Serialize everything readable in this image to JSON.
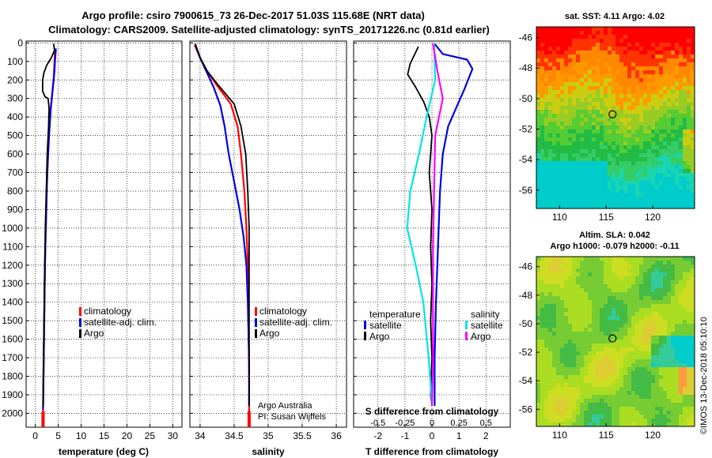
{
  "header": {
    "title_line1": "Argo profile: csiro 7900615_73 26-Dec-2017 51.03S 115.68E (NRT data)",
    "title_line2": "Climatology: CARS2009. Satellite-adjusted climatology: synTS_20171226.nc (0.81d earlier)"
  },
  "colors": {
    "climatology": "#ff0000",
    "satellite_adj": "#0000dd",
    "argo": "#000000",
    "satellite_salinity": "#00e5e5",
    "argo_salinity": "#ff00ff"
  },
  "chart_data": [
    {
      "type": "line",
      "id": "temperature",
      "xlabel": "temperature (deg C)",
      "ylabel": "",
      "xlim": [
        -2,
        32
      ],
      "ylim": [
        2075,
        -10
      ],
      "xticks": [
        "0",
        "5",
        "10",
        "15",
        "20",
        "25",
        "30"
      ],
      "xtick_values": [
        0,
        5,
        10,
        15,
        20,
        25,
        30
      ],
      "yticks": [
        "0",
        "100",
        "200",
        "300",
        "400",
        "500",
        "600",
        "700",
        "800",
        "900",
        "1000",
        "1100",
        "1200",
        "1300",
        "1400",
        "1500",
        "1600",
        "1700",
        "1800",
        "1900",
        "2000"
      ],
      "legend": [
        "climatology",
        "satellite-adj. clim.",
        "Argo"
      ],
      "series": [
        {
          "name": "climatology",
          "color": "#ff0000",
          "points": [
            [
              4.3,
              30
            ],
            [
              4.2,
              100
            ],
            [
              4.0,
              200
            ],
            [
              3.6,
              300
            ],
            [
              3.2,
              400
            ],
            [
              2.8,
              600
            ],
            [
              2.5,
              800
            ],
            [
              2.3,
              1000
            ],
            [
              2.1,
              1200
            ],
            [
              2.0,
              1400
            ],
            [
              1.9,
              1600
            ],
            [
              1.8,
              1800
            ],
            [
              1.7,
              2000
            ],
            [
              1.7,
              2050
            ]
          ]
        },
        {
          "name": "satellite-adj. clim.",
          "color": "#0000dd",
          "points": [
            [
              4.5,
              30
            ],
            [
              4.3,
              100
            ],
            [
              4.2,
              150
            ],
            [
              3.8,
              250
            ],
            [
              3.4,
              350
            ],
            [
              3.0,
              500
            ],
            [
              2.6,
              700
            ],
            [
              2.4,
              900
            ],
            [
              2.2,
              1100
            ],
            [
              2.05,
              1300
            ],
            [
              1.95,
              1500
            ],
            [
              1.85,
              1700
            ],
            [
              1.75,
              1900
            ],
            [
              1.7,
              1980
            ]
          ]
        },
        {
          "name": "Argo",
          "color": "#000000",
          "points": [
            [
              4.0,
              5
            ],
            [
              4.2,
              40
            ],
            [
              3.5,
              80
            ],
            [
              2.5,
              120
            ],
            [
              1.9,
              160
            ],
            [
              1.6,
              200
            ],
            [
              1.6,
              260
            ],
            [
              2.1,
              290
            ],
            [
              2.8,
              300
            ],
            [
              3.0,
              350
            ],
            [
              2.9,
              450
            ],
            [
              2.6,
              600
            ],
            [
              2.4,
              800
            ],
            [
              2.2,
              1000
            ],
            [
              2.05,
              1200
            ],
            [
              1.95,
              1400
            ],
            [
              1.85,
              1600
            ],
            [
              1.75,
              1800
            ],
            [
              1.7,
              1960
            ]
          ]
        }
      ]
    },
    {
      "type": "line",
      "id": "salinity",
      "xlabel": "salinity",
      "ylabel": "",
      "xlim": [
        33.85,
        36.15
      ],
      "ylim": [
        2075,
        -10
      ],
      "xticks": [
        "34",
        "34.5",
        "35",
        "35.5",
        "36"
      ],
      "xtick_values": [
        34,
        34.5,
        35,
        35.5,
        36
      ],
      "legend": [
        "climatology",
        "satellite-adj. clim.",
        "Argo"
      ],
      "annotation": [
        "Argo Australia",
        "PI: Susan Wijffels"
      ],
      "series": [
        {
          "name": "climatology",
          "color": "#ff0000",
          "points": [
            [
              33.92,
              10
            ],
            [
              34.0,
              80
            ],
            [
              34.1,
              150
            ],
            [
              34.25,
              230
            ],
            [
              34.45,
              330
            ],
            [
              34.55,
              450
            ],
            [
              34.6,
              600
            ],
            [
              34.65,
              800
            ],
            [
              34.68,
              1000
            ],
            [
              34.7,
              1200
            ],
            [
              34.71,
              1500
            ],
            [
              34.72,
              1800
            ],
            [
              34.72,
              2050
            ]
          ]
        },
        {
          "name": "satellite-adj. clim.",
          "color": "#0000dd",
          "points": [
            [
              33.93,
              10
            ],
            [
              34.0,
              80
            ],
            [
              34.1,
              160
            ],
            [
              34.2,
              240
            ],
            [
              34.3,
              340
            ],
            [
              34.36,
              450
            ],
            [
              34.42,
              600
            ],
            [
              34.5,
              750
            ],
            [
              34.58,
              900
            ],
            [
              34.64,
              1050
            ],
            [
              34.68,
              1200
            ],
            [
              34.7,
              1400
            ],
            [
              34.72,
              1700
            ],
            [
              34.72,
              1960
            ]
          ]
        },
        {
          "name": "Argo",
          "color": "#000000",
          "points": [
            [
              33.93,
              5
            ],
            [
              34.0,
              80
            ],
            [
              34.1,
              150
            ],
            [
              34.25,
              220
            ],
            [
              34.5,
              330
            ],
            [
              34.6,
              450
            ],
            [
              34.67,
              600
            ],
            [
              34.7,
              800
            ],
            [
              34.72,
              1000
            ],
            [
              34.72,
              1200
            ],
            [
              34.72,
              1500
            ],
            [
              34.72,
              1800
            ],
            [
              34.72,
              1960
            ]
          ]
        }
      ]
    },
    {
      "type": "line",
      "id": "difference",
      "xlabel": "T difference from climatology",
      "xlabel_top": "S difference from climatology",
      "xlim": [
        -2.9,
        2.9
      ],
      "ylim": [
        2075,
        -10
      ],
      "xticks": [
        "-2",
        "-1",
        "0",
        "1",
        "2"
      ],
      "xtick_values": [
        -2,
        -1,
        0,
        1,
        2
      ],
      "xticks_s": [
        "-0.5",
        "-0.25",
        "0",
        "0.25",
        "0.5"
      ],
      "xtick_s_values": [
        -0.5,
        -0.25,
        0,
        0.25,
        0.5
      ],
      "legend_temperature": {
        "title": "temperature",
        "items": [
          "satellite",
          "Argo"
        ]
      },
      "legend_salinity": {
        "title": "salinity",
        "items": [
          "satellite",
          "Argo"
        ]
      },
      "series": [
        {
          "name": "temperature satellite",
          "color": "#0000dd",
          "points": [
            [
              0.1,
              5
            ],
            [
              0.4,
              60
            ],
            [
              1.3,
              90
            ],
            [
              1.5,
              140
            ],
            [
              1.2,
              250
            ],
            [
              0.9,
              350
            ],
            [
              0.6,
              450
            ],
            [
              0.4,
              600
            ],
            [
              0.3,
              800
            ],
            [
              0.25,
              1000
            ],
            [
              0.2,
              1200
            ],
            [
              0.15,
              1400
            ],
            [
              0.1,
              1700
            ],
            [
              0.1,
              1960
            ]
          ]
        },
        {
          "name": "temperature Argo",
          "color": "#000000",
          "points": [
            [
              -0.5,
              20
            ],
            [
              -0.8,
              110
            ],
            [
              -0.9,
              170
            ],
            [
              -0.6,
              240
            ],
            [
              -0.3,
              320
            ],
            [
              -0.1,
              400
            ],
            [
              0.0,
              500
            ],
            [
              -0.1,
              700
            ],
            [
              0.0,
              900
            ],
            [
              -0.05,
              1100
            ],
            [
              0.0,
              1300
            ],
            [
              -0.05,
              1500
            ],
            [
              0.0,
              1700
            ],
            [
              -0.05,
              1900
            ],
            [
              0.0,
              1960
            ]
          ]
        },
        {
          "name": "salinity satellite",
          "color": "#00e5e5",
          "points": [
            [
              0.02,
              5
            ],
            [
              0.03,
              200
            ],
            [
              -0.05,
              400
            ],
            [
              -0.12,
              600
            ],
            [
              -0.2,
              800
            ],
            [
              -0.23,
              1000
            ],
            [
              -0.15,
              1200
            ],
            [
              -0.08,
              1400
            ],
            [
              -0.03,
              1700
            ],
            [
              0.0,
              1960
            ]
          ]
        },
        {
          "name": "salinity Argo",
          "color": "#ff00ff",
          "points": [
            [
              0.01,
              5
            ],
            [
              0.05,
              150
            ],
            [
              0.1,
              300
            ],
            [
              0.03,
              500
            ],
            [
              0.02,
              800
            ],
            [
              0.01,
              1100
            ],
            [
              0.01,
              1400
            ],
            [
              0.01,
              1700
            ],
            [
              0.0,
              1960
            ]
          ]
        }
      ]
    },
    {
      "type": "heatmap",
      "id": "sst_map",
      "title": "sat. SST: 4.11 Argo: 4.02",
      "xticks": [
        "110",
        "115",
        "120"
      ],
      "xtick_values": [
        110,
        115,
        120
      ],
      "yticks": [
        "-46",
        "-48",
        "-50",
        "-52",
        "-54",
        "-56"
      ],
      "ytick_values": [
        -46,
        -48,
        -50,
        -52,
        -54,
        -56
      ],
      "xlim": [
        107.5,
        124.5
      ],
      "ylim": [
        -57.2,
        -45.3
      ],
      "marker": [
        115.68,
        -51.03
      ]
    },
    {
      "type": "heatmap",
      "id": "sla_map",
      "title_line1": "Altim. SLA: 0.042",
      "title_line2": "Argo h1000: -0.079 h2000: -0.11",
      "xticks": [
        "110",
        "115",
        "120"
      ],
      "xtick_values": [
        110,
        115,
        120
      ],
      "yticks": [
        "-46",
        "-48",
        "-50",
        "-52",
        "-54",
        "-56"
      ],
      "ytick_values": [
        -46,
        -48,
        -50,
        -52,
        -54,
        -56
      ],
      "xlim": [
        107.5,
        124.5
      ],
      "ylim": [
        -57.2,
        -45.3
      ],
      "marker": [
        115.68,
        -51.03
      ]
    }
  ],
  "watermark": "©IMOS 13-Dec-2018 05:10:10"
}
